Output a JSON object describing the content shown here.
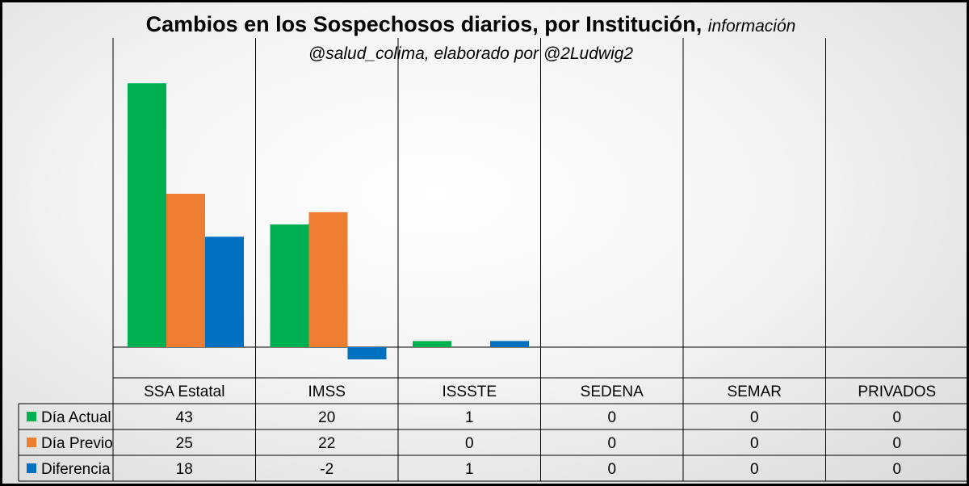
{
  "chart_data": {
    "type": "bar",
    "title": "Cambios en los Sospechosos diarios, por Institución,",
    "subtitle": "información",
    "subtitle2": "@salud_colima, elaborado por @2Ludwig2",
    "categories": [
      "SSA Estatal",
      "IMSS",
      "ISSSTE",
      "SEDENA",
      "SEMAR",
      "PRIVADOS"
    ],
    "series": [
      {
        "name": "Día Actual",
        "values": [
          43,
          20,
          1,
          0,
          0,
          0
        ],
        "color": "#00b050"
      },
      {
        "name": "Día Previo",
        "values": [
          25,
          22,
          0,
          0,
          0,
          0
        ],
        "color": "#ed7d31"
      },
      {
        "name": "Diferencia",
        "values": [
          18,
          -2,
          1,
          0,
          0,
          0
        ],
        "color": "#0070c0"
      }
    ],
    "ylim": [
      -2,
      43
    ],
    "legend": "data-table",
    "grid": "vertical-category-separators"
  }
}
